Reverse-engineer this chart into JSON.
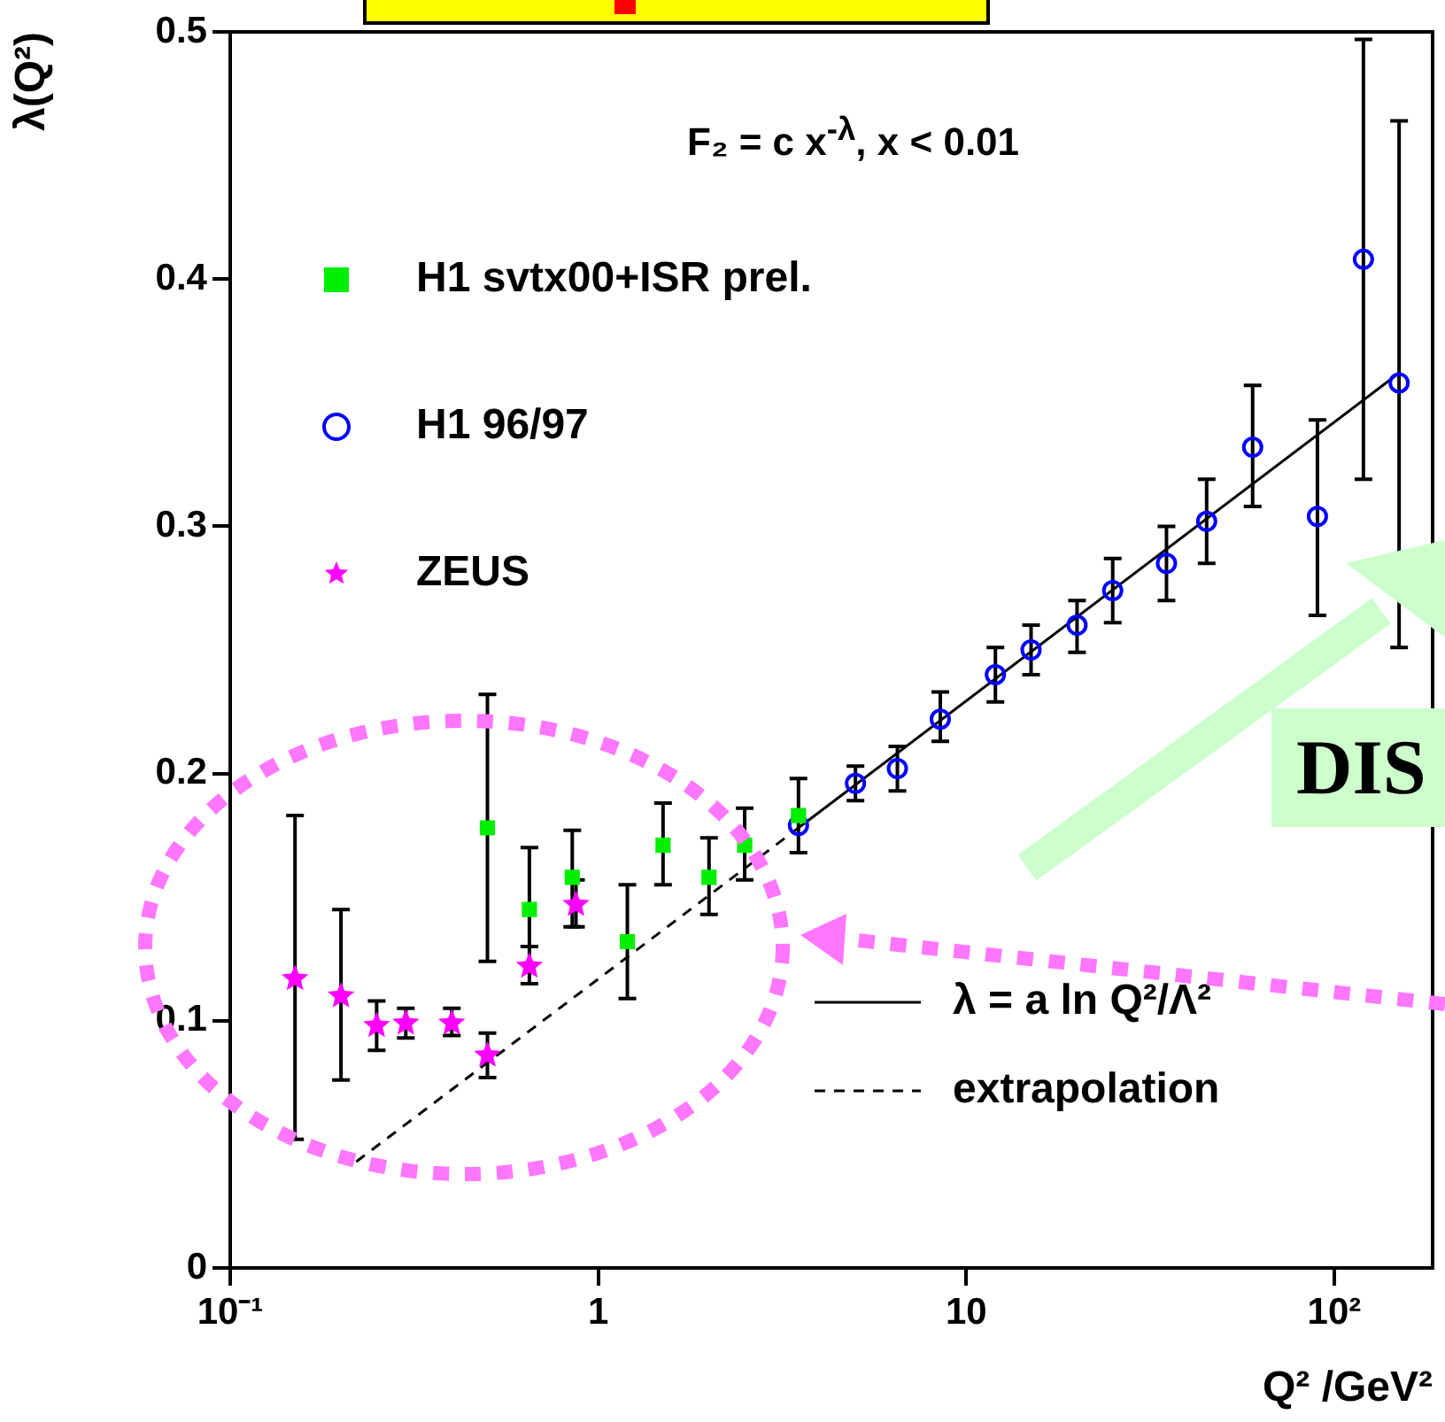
{
  "chart_data": {
    "type": "scatter",
    "xlabel": "Q² /GeV²",
    "ylabel": "λ(Q²)",
    "log": "x",
    "xlim": [
      0.1,
      185
    ],
    "xticks": [
      {
        "value": 0.1,
        "label": "10⁻¹"
      },
      1,
      10,
      {
        "value": 100,
        "label": "10²"
      }
    ],
    "ylim": [
      0,
      0.5
    ],
    "yticks": [
      0,
      0.1,
      0.2,
      0.3,
      0.4,
      0.5
    ],
    "grid": false,
    "legend": "left",
    "annotations": [
      "F₂ = c x$^{-λ}$,  x < 0.01",
      "DIS"
    ],
    "series": [
      {
        "name": "H1 svtx00+ISR prel.",
        "color": "#00ee00",
        "marker": "square",
        "x": [
          0.5,
          0.65,
          0.85,
          1.2,
          1.5,
          2,
          2.5,
          3.5
        ],
        "values": [
          0.178,
          0.145,
          0.158,
          0.132,
          0.171,
          0.158,
          0.171,
          0.183
        ],
        "errors": [
          [
            0.124,
            0.232
          ],
          [
            0.13,
            0.17
          ],
          [
            0.138,
            0.177
          ],
          [
            0.109,
            0.155
          ],
          [
            0.155,
            0.188
          ],
          [
            0.143,
            0.174
          ],
          [
            0.157,
            0.186
          ],
          null
        ]
      },
      {
        "name": "H1 96/97",
        "color": "#0000ff",
        "marker": "circle",
        "x": [
          3.5,
          5,
          6.5,
          8.5,
          12,
          15,
          20,
          25,
          35,
          45,
          60,
          90,
          120,
          150
        ],
        "values": [
          0.179,
          0.196,
          0.202,
          0.222,
          0.24,
          0.25,
          0.26,
          0.274,
          0.285,
          0.302,
          0.332,
          0.304,
          0.408,
          0.358
        ],
        "errors": [
          [
            0.168,
            0.198
          ],
          [
            0.189,
            0.203
          ],
          [
            0.193,
            0.211
          ],
          [
            0.213,
            0.233
          ],
          [
            0.229,
            0.251
          ],
          [
            0.24,
            0.26
          ],
          [
            0.249,
            0.27
          ],
          [
            0.261,
            0.287
          ],
          [
            0.27,
            0.3
          ],
          [
            0.285,
            0.319
          ],
          [
            0.308,
            0.357
          ],
          [
            0.264,
            0.343
          ],
          [
            0.319,
            0.497
          ],
          [
            0.251,
            0.464
          ]
        ]
      },
      {
        "name": "ZEUS",
        "color": "#ff00ff",
        "marker": "star",
        "x": [
          0.15,
          0.2,
          0.25,
          0.3,
          0.4,
          0.5,
          0.65,
          0.87
        ],
        "values": [
          0.117,
          0.11,
          0.098,
          0.099,
          0.099,
          0.086,
          0.122,
          0.147
        ],
        "errors": [
          [
            0.052,
            0.183
          ],
          [
            0.076,
            0.145
          ],
          [
            0.088,
            0.108
          ],
          [
            0.093,
            0.105
          ],
          [
            0.094,
            0.105
          ],
          [
            0.077,
            0.095
          ],
          [
            0.115,
            0.13
          ],
          [
            0.138,
            0.157
          ]
        ]
      },
      {
        "name": "λ = a ln Q²/Λ²",
        "type": "line",
        "color": "#000000",
        "marker": "none",
        "line_style": "solid",
        "x": [
          3.5,
          150
        ],
        "values": [
          0.178,
          0.362
        ]
      },
      {
        "name": "extrapolation",
        "type": "line",
        "color": "#000000",
        "marker": "none",
        "line_style": "dashed",
        "x": [
          0.22,
          3.5
        ],
        "values": [
          0.043,
          0.178
        ]
      }
    ]
  }
}
